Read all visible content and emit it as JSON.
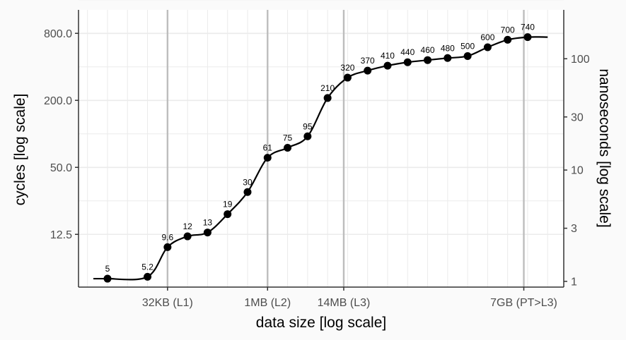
{
  "chart_data": {
    "type": "line",
    "x_axis": {
      "label": "data size [log scale]",
      "scale": "log2",
      "units": "bytes",
      "ticks": [
        {
          "value": 32768,
          "label": "32KB (L1)"
        },
        {
          "value": 1048576,
          "label": "1MB (L2)"
        },
        {
          "value": 14680064,
          "label": "14MB (L3)"
        },
        {
          "value": 7516192768,
          "label": "7GB (PT>L3)"
        }
      ],
      "xlim": [
        1500,
        30000000000
      ],
      "grid": true
    },
    "y_axis_left": {
      "label": "cycles [log scale]",
      "scale": "log",
      "ticks": [
        {
          "value": 12.5,
          "label": "12.5"
        },
        {
          "value": 50,
          "label": "50.0"
        },
        {
          "value": 200,
          "label": "200.0"
        },
        {
          "value": 800,
          "label": "800.0"
        }
      ],
      "ylim": [
        4.2,
        1300
      ]
    },
    "y_axis_right": {
      "label": "nanoseconds [log scale]",
      "scale": "log",
      "ticks": [
        {
          "value": 1,
          "label": "1"
        },
        {
          "value": 3,
          "label": "3"
        },
        {
          "value": 10,
          "label": "10"
        },
        {
          "value": 30,
          "label": "30"
        },
        {
          "value": 100,
          "label": "100"
        }
      ]
    },
    "series": [
      {
        "x": [
          4096,
          16384,
          32768,
          65536,
          131072,
          262144,
          524288,
          1048576,
          2097152,
          4194304,
          8388608,
          16777216,
          33554432,
          67108864,
          134217728,
          268435456,
          536870912,
          1073741824,
          2147483648,
          4294967296,
          8589934592,
          17179869184
        ],
        "values": [
          5,
          5.2,
          9.6,
          12,
          13,
          19,
          30,
          61,
          75,
          95,
          210,
          320,
          370,
          410,
          440,
          460,
          480,
          500,
          600,
          700,
          740,
          740
        ],
        "data_labels": [
          "5",
          "5.2",
          "9.6",
          "12",
          "13",
          "19",
          "30",
          "61",
          "75",
          "95",
          "210",
          "320",
          "370",
          "410",
          "440",
          "460",
          "480",
          "500",
          "600",
          "700",
          "740",
          ""
        ]
      }
    ],
    "grid": true,
    "legend": "none"
  }
}
